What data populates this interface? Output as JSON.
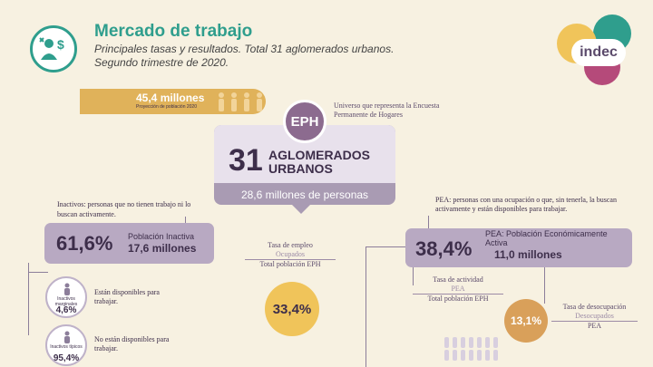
{
  "header": {
    "title": "Mercado de trabajo",
    "subtitle": "Principales tasas y resultados. Total 31 aglomerados urbanos. Segundo trimestre de 2020.",
    "icon": "worker-money-icon"
  },
  "logo": {
    "text": "indec"
  },
  "population": {
    "number": "45,4 millones",
    "label": "Proyección de población 2020"
  },
  "eph": {
    "badge": "EPH",
    "description": "Universo que representa la Encuesta Permanente de Hogares"
  },
  "central": {
    "number": "31",
    "label": "AGLOMERADOS URBANOS",
    "subtext": "28,6 millones de personas"
  },
  "inactivos": {
    "description": "Inactivos: personas que no tienen trabajo ni lo buscan activamente.",
    "percent": "61,6%",
    "label": "Población Inactiva",
    "value": "17,6 millones",
    "marginales": {
      "label": "Inactivos marginales",
      "percent": "4,6%",
      "text": "Están disponibles para trabajar."
    },
    "tipicos": {
      "label": "Inactivos típicos",
      "percent": "95,4%",
      "text": "No están disponibles para trabajar."
    }
  },
  "empleo": {
    "title": "Tasa de empleo",
    "numerator": "Ocupados",
    "denominator": "Total población EPH",
    "value": "33,4%"
  },
  "pea": {
    "description": "PEA: personas con una ocupación o que, sin tenerla, la buscan activamente y están disponibles para trabajar.",
    "percent": "38,4%",
    "label": "PEA: Población Económicamente Activa",
    "value": "11,0 millones",
    "actividad": {
      "title": "Tasa de actividad",
      "numerator": "PEA",
      "denominator": "Total población EPH"
    },
    "desocupacion": {
      "title": "Tasa de desocupación",
      "numerator": "Desocupados",
      "denominator": "PEA",
      "value": "13,1%"
    }
  },
  "colors": {
    "teal": "#2f9e8d",
    "purple": "#5b4a6b",
    "lavender": "#b8a9c2",
    "gold": "#e0b25a",
    "background": "#f7f1e1"
  }
}
